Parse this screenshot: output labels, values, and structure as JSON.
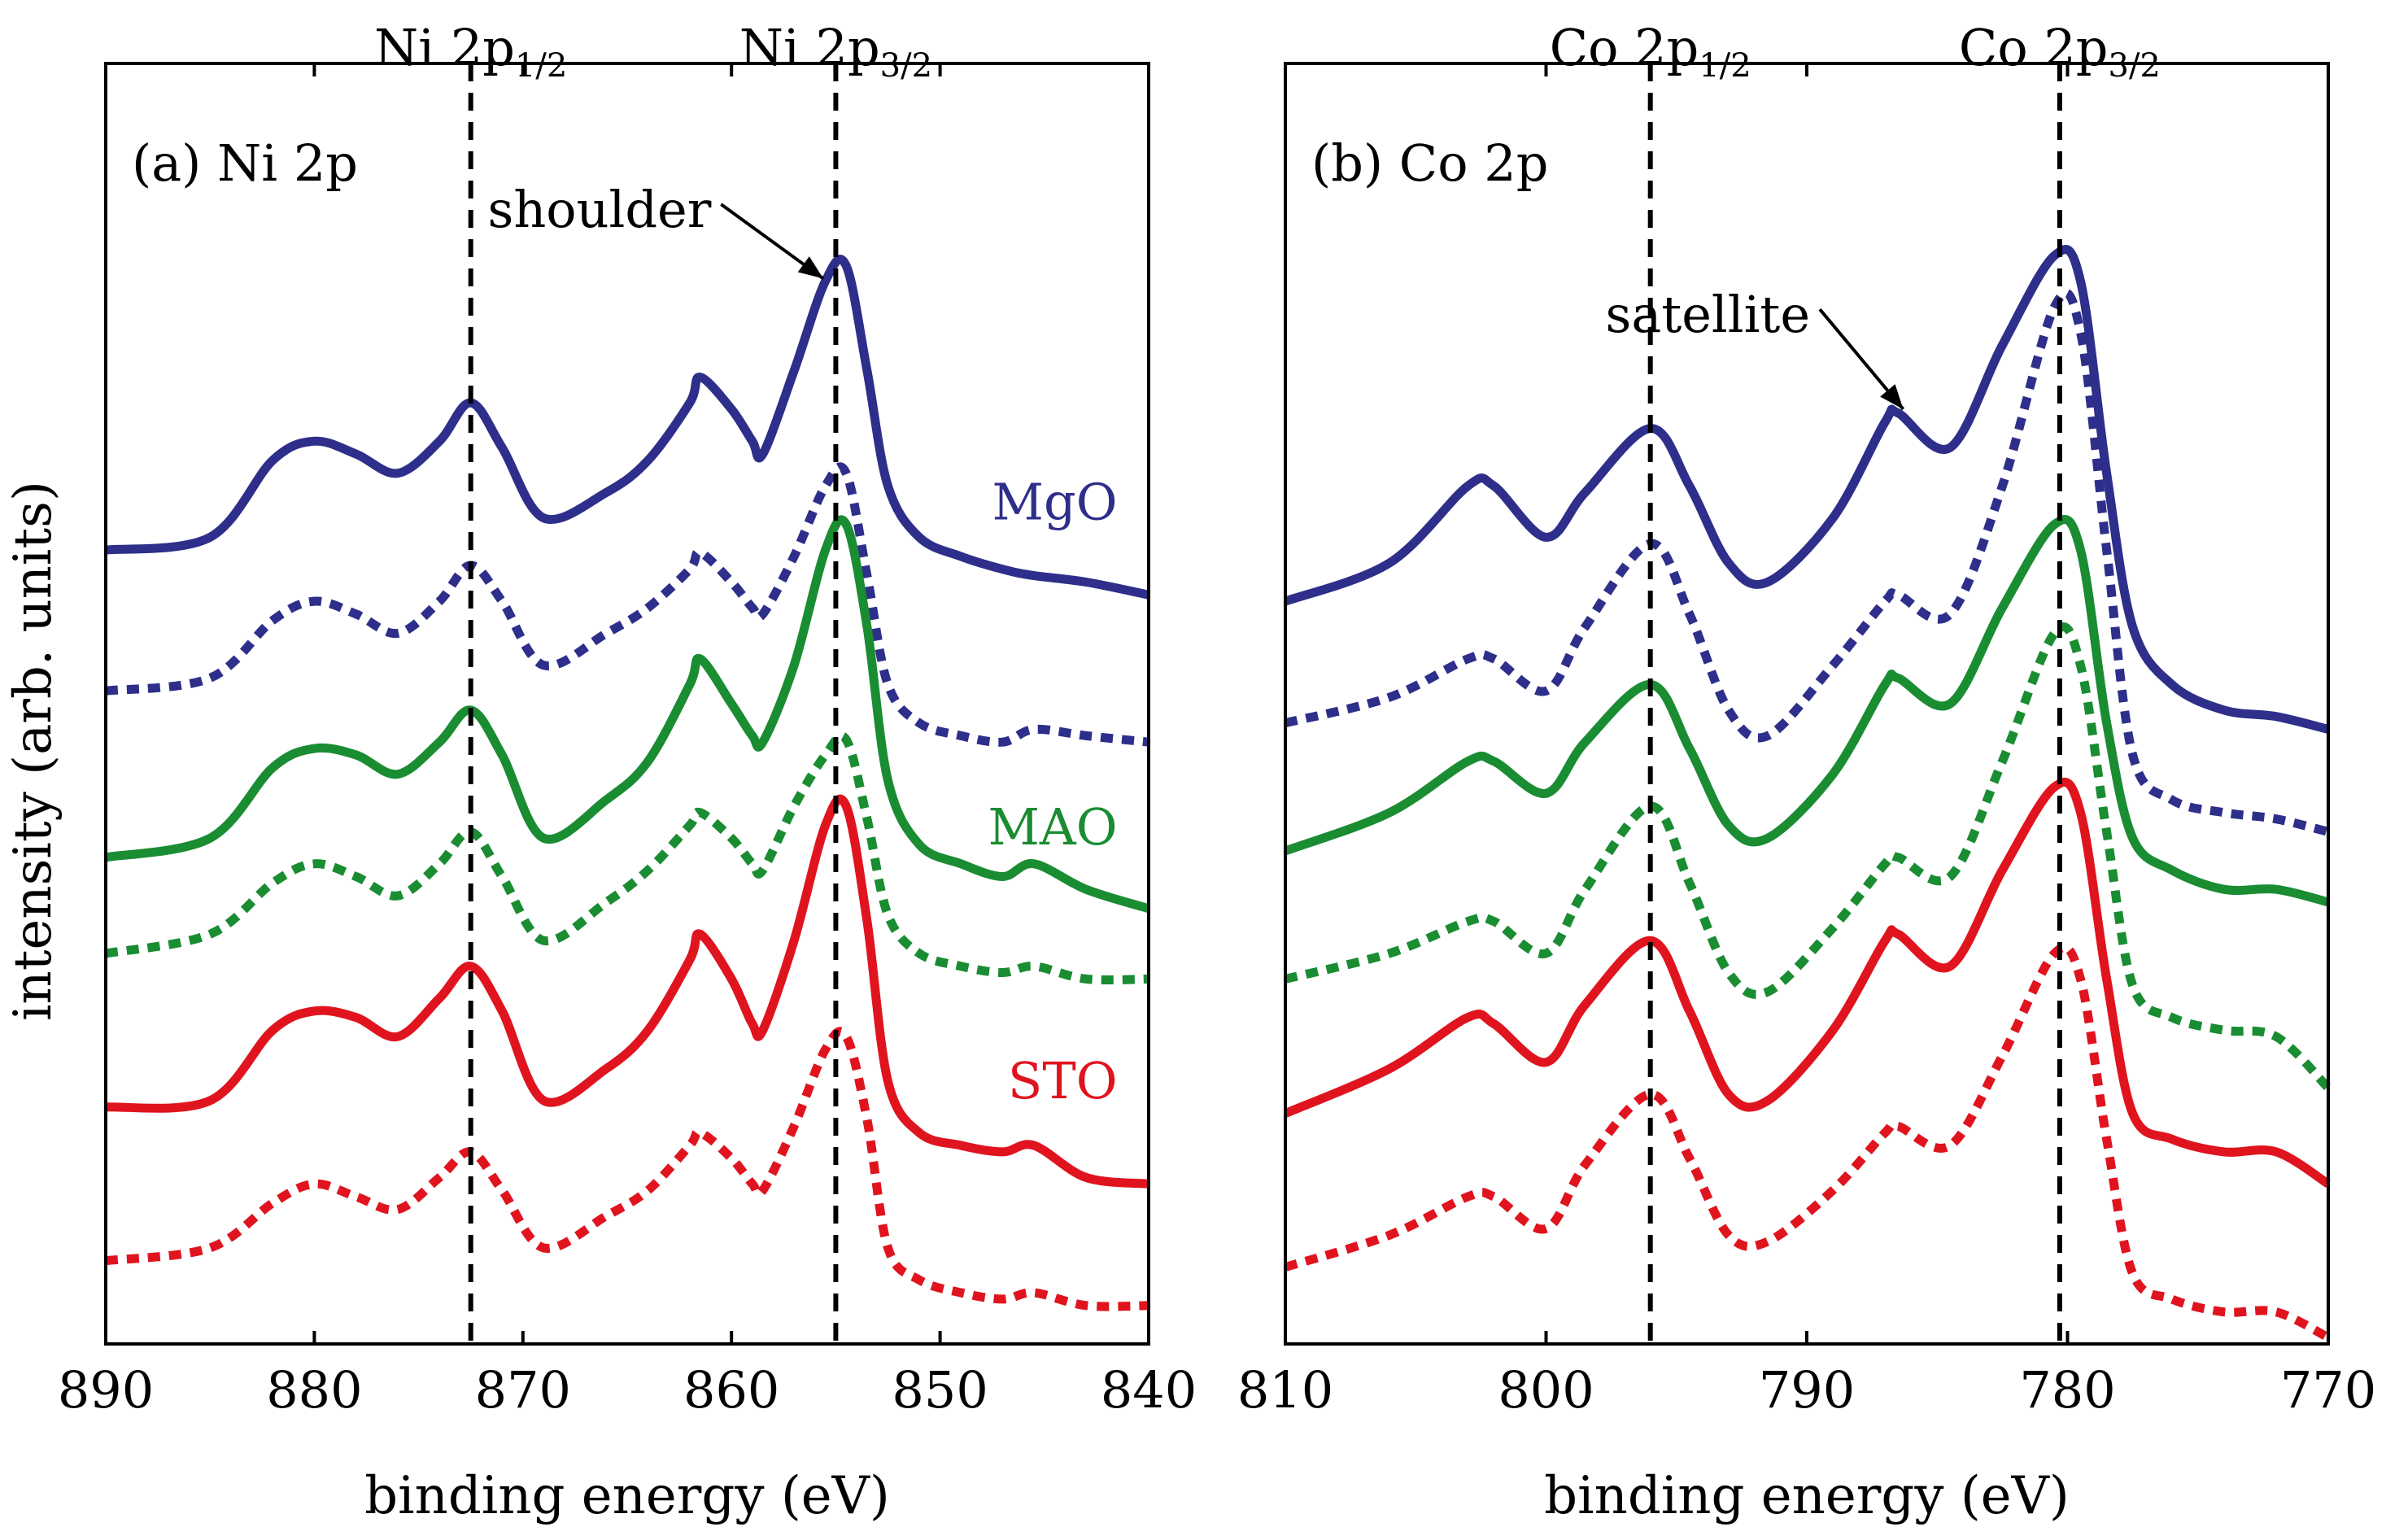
{
  "figure": {
    "ylabel": "intensity (arb. units)"
  },
  "chart_data": [
    {
      "type": "line",
      "panel_label": "(a) Ni 2p",
      "xlabel": "binding energy (eV)",
      "ylabel": "intensity (arb. units)",
      "xlim": [
        890,
        840
      ],
      "ylim": [
        0,
        10
      ],
      "x_ticks": [
        "890",
        "880",
        "870",
        "860",
        "850",
        "840"
      ],
      "x_tick_values": [
        890,
        880,
        870,
        860,
        850,
        840
      ],
      "reference_lines": [
        {
          "x": 872.5,
          "main": "Ni 2p",
          "sub": "1/2"
        },
        {
          "x": 855.0,
          "main": "Ni 2p",
          "sub": "3/2"
        }
      ],
      "annotation": {
        "text": "shoulder",
        "x_from": 860.5,
        "y_from": 8.9,
        "x_to": 855.6,
        "y_to": 8.32
      },
      "substrate_labels": [
        {
          "text": "MgO",
          "color": "#2e2e8b",
          "x": 841.5,
          "y": 6.44
        },
        {
          "text": "MAO",
          "color": "#1a8c32",
          "x": 841.5,
          "y": 3.9
        },
        {
          "text": "STO",
          "color": "#e0141e",
          "x": 841.5,
          "y": 1.92
        }
      ],
      "x": [
        890,
        885,
        882,
        880,
        878,
        876,
        874,
        872.5,
        871,
        869,
        866,
        864,
        862,
        861.5,
        860,
        859,
        858.5,
        857,
        855.5,
        854.5,
        853.5,
        852.5,
        851,
        849,
        847,
        845.5,
        843,
        840
      ],
      "series": [
        {
          "name": "MgO",
          "color": "#2e2e8b",
          "style": "solid",
          "values": [
            6.2,
            6.3,
            6.9,
            7.05,
            6.95,
            6.8,
            7.05,
            7.35,
            7.0,
            6.45,
            6.65,
            6.9,
            7.35,
            7.55,
            7.3,
            7.05,
            6.95,
            7.6,
            8.3,
            8.42,
            7.6,
            6.7,
            6.3,
            6.15,
            6.05,
            6.0,
            5.95,
            5.85
          ]
        },
        {
          "name": "MgO dotted",
          "color": "#2e2e8b",
          "style": "dotted",
          "values": [
            5.1,
            5.2,
            5.65,
            5.8,
            5.7,
            5.55,
            5.8,
            6.08,
            5.8,
            5.3,
            5.55,
            5.75,
            6.05,
            6.18,
            5.95,
            5.75,
            5.7,
            6.15,
            6.7,
            6.8,
            6.0,
            5.15,
            4.85,
            4.75,
            4.7,
            4.8,
            4.75,
            4.7
          ]
        },
        {
          "name": "MAO",
          "color": "#1a8c32",
          "style": "solid",
          "values": [
            3.8,
            3.95,
            4.5,
            4.65,
            4.6,
            4.45,
            4.7,
            4.95,
            4.6,
            3.95,
            4.25,
            4.55,
            5.15,
            5.35,
            5.0,
            4.75,
            4.7,
            5.3,
            6.2,
            6.4,
            5.6,
            4.4,
            3.9,
            3.75,
            3.65,
            3.75,
            3.55,
            3.4
          ]
        },
        {
          "name": "MAO dotted",
          "color": "#1a8c32",
          "style": "dotted",
          "values": [
            3.05,
            3.2,
            3.6,
            3.75,
            3.65,
            3.5,
            3.75,
            4.0,
            3.65,
            3.15,
            3.45,
            3.7,
            4.05,
            4.15,
            3.95,
            3.75,
            3.7,
            4.2,
            4.6,
            4.72,
            4.1,
            3.35,
            3.05,
            2.95,
            2.9,
            2.95,
            2.85,
            2.85
          ]
        },
        {
          "name": "STO",
          "color": "#e0141e",
          "style": "solid",
          "values": [
            1.85,
            1.9,
            2.45,
            2.6,
            2.55,
            2.4,
            2.7,
            2.95,
            2.6,
            1.9,
            2.15,
            2.45,
            3.0,
            3.2,
            2.85,
            2.5,
            2.45,
            3.15,
            4.05,
            4.2,
            3.3,
            2.05,
            1.65,
            1.55,
            1.5,
            1.55,
            1.3,
            1.25
          ]
        },
        {
          "name": "STO dotted",
          "color": "#e0141e",
          "style": "dotted",
          "values": [
            0.65,
            0.75,
            1.1,
            1.25,
            1.15,
            1.05,
            1.3,
            1.5,
            1.2,
            0.75,
            1.0,
            1.2,
            1.55,
            1.65,
            1.45,
            1.25,
            1.2,
            1.7,
            2.3,
            2.4,
            1.75,
            0.75,
            0.5,
            0.4,
            0.35,
            0.4,
            0.3,
            0.3
          ]
        }
      ]
    },
    {
      "type": "line",
      "panel_label": "(b) Co 2p",
      "xlabel": "binding energy (eV)",
      "xlim": [
        810,
        770
      ],
      "ylim": [
        0,
        10
      ],
      "x_ticks": [
        "810",
        "800",
        "790",
        "780",
        "770"
      ],
      "x_tick_values": [
        810,
        800,
        790,
        780,
        770
      ],
      "reference_lines": [
        {
          "x": 796.0,
          "main": "Co 2p",
          "sub": "1/2"
        },
        {
          "x": 780.3,
          "main": "Co 2p",
          "sub": "3/2"
        }
      ],
      "annotation": {
        "text": "satellite",
        "x_from": 789.5,
        "y_from": 8.08,
        "x_to": 786.3,
        "y_to": 7.3
      },
      "x": [
        810,
        806,
        803,
        802,
        800,
        798.5,
        796,
        794.5,
        793,
        791.5,
        789,
        787,
        786.5,
        784.5,
        782.5,
        780.5,
        779.5,
        778.5,
        777.5,
        776,
        774,
        772,
        770
      ],
      "series": [
        {
          "name": "MgO",
          "color": "#2e2e8b",
          "style": "solid",
          "values": [
            5.8,
            6.1,
            6.7,
            6.7,
            6.3,
            6.65,
            7.15,
            6.7,
            6.1,
            5.95,
            6.45,
            7.2,
            7.27,
            7.0,
            7.8,
            8.5,
            8.3,
            6.8,
            5.6,
            5.15,
            4.95,
            4.9,
            4.8
          ]
        },
        {
          "name": "MgO dotted",
          "color": "#2e2e8b",
          "style": "dotted",
          "values": [
            4.85,
            5.05,
            5.35,
            5.35,
            5.1,
            5.6,
            6.25,
            5.7,
            4.95,
            4.75,
            5.3,
            5.8,
            5.85,
            5.7,
            6.7,
            8.1,
            7.9,
            6.2,
            4.6,
            4.25,
            4.15,
            4.1,
            4.0
          ]
        },
        {
          "name": "MAO",
          "color": "#1a8c32",
          "style": "solid",
          "values": [
            3.85,
            4.15,
            4.55,
            4.55,
            4.3,
            4.7,
            5.15,
            4.65,
            4.05,
            3.95,
            4.45,
            5.15,
            5.2,
            5.0,
            5.75,
            6.4,
            6.2,
            4.85,
            3.95,
            3.7,
            3.55,
            3.55,
            3.45
          ]
        },
        {
          "name": "MAO dotted",
          "color": "#1a8c32",
          "style": "dotted",
          "values": [
            2.85,
            3.05,
            3.3,
            3.3,
            3.05,
            3.55,
            4.2,
            3.6,
            2.9,
            2.75,
            3.25,
            3.75,
            3.8,
            3.65,
            4.55,
            5.55,
            5.3,
            4.0,
            2.8,
            2.55,
            2.45,
            2.4,
            2.0
          ]
        },
        {
          "name": "STO",
          "color": "#e0141e",
          "style": "solid",
          "values": [
            1.8,
            2.15,
            2.55,
            2.5,
            2.2,
            2.65,
            3.15,
            2.6,
            1.95,
            1.9,
            2.45,
            3.15,
            3.2,
            2.95,
            3.7,
            4.35,
            4.15,
            2.85,
            1.8,
            1.6,
            1.5,
            1.5,
            1.25
          ]
        },
        {
          "name": "STO dotted",
          "color": "#e0141e",
          "style": "dotted",
          "values": [
            0.6,
            0.85,
            1.15,
            1.15,
            0.9,
            1.4,
            1.95,
            1.45,
            0.85,
            0.8,
            1.2,
            1.65,
            1.7,
            1.55,
            2.25,
            3.05,
            2.85,
            1.6,
            0.55,
            0.35,
            0.25,
            0.25,
            0.05
          ]
        }
      ]
    }
  ]
}
